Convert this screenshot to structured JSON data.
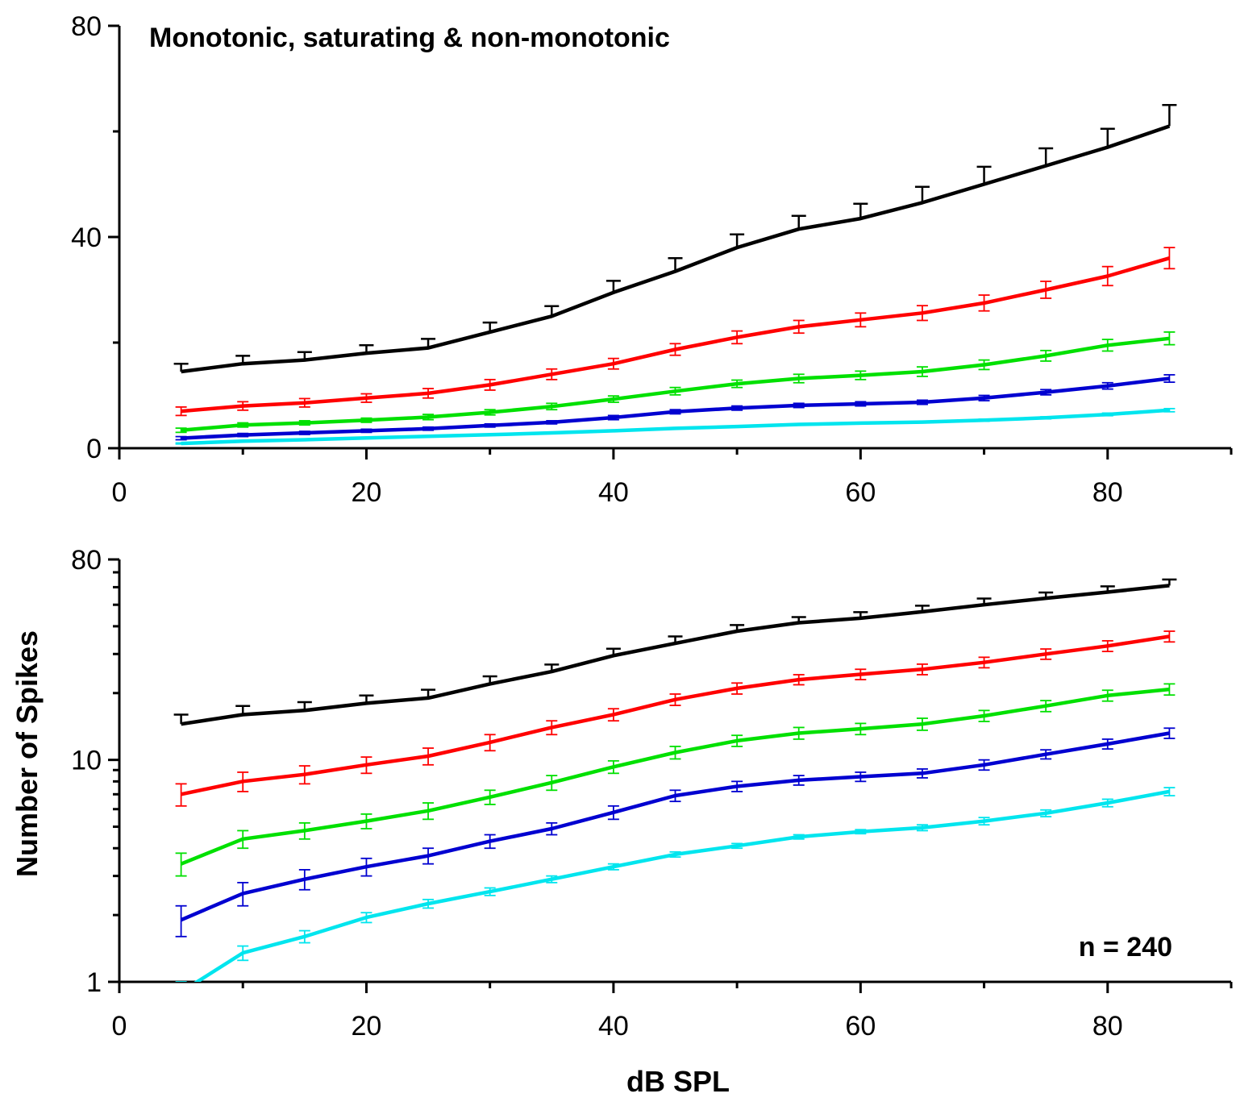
{
  "chart_data": [
    {
      "type": "line",
      "title": "Monotonic, saturating & non-monotonic",
      "xlabel": "",
      "ylabel": "",
      "xlim": [
        0,
        90
      ],
      "ylim": [
        0,
        80
      ],
      "yscale": "linear",
      "x_ticks": [
        0,
        20,
        40,
        60,
        80
      ],
      "x_ticks_labels": [
        "0",
        "20",
        "40",
        "60",
        "80"
      ],
      "y_ticks": [
        0,
        40,
        80
      ],
      "y_ticks_labels": [
        "0",
        "40",
        "80"
      ],
      "y_minor_ticks": [
        20,
        60
      ],
      "error_bars": "upper only (black); symmetric (colored)",
      "x": [
        5,
        10,
        15,
        20,
        25,
        30,
        35,
        40,
        45,
        50,
        55,
        60,
        65,
        70,
        75,
        80,
        85
      ],
      "series": [
        {
          "color": "#000000",
          "error_style": "upper",
          "values": [
            14.5,
            16,
            16.7,
            18,
            19,
            22,
            25,
            29.5,
            33.5,
            38,
            41.5,
            43.5,
            46.5,
            50,
            53.5,
            57,
            61
          ],
          "errors": [
            1.5,
            1.5,
            1.5,
            1.5,
            1.7,
            1.8,
            1.9,
            2.2,
            2.5,
            2.5,
            2.5,
            2.8,
            3,
            3.3,
            3.3,
            3.5,
            4
          ]
        },
        {
          "color": "#ff0000",
          "error_style": "both",
          "values": [
            7,
            8,
            8.6,
            9.5,
            10.4,
            12,
            14,
            16,
            18.7,
            21,
            23,
            24.3,
            25.6,
            27.5,
            30,
            32.6,
            36
          ],
          "errors": [
            0.8,
            0.8,
            0.8,
            0.8,
            0.9,
            1,
            1,
            1,
            1.1,
            1.2,
            1.2,
            1.3,
            1.4,
            1.5,
            1.6,
            1.8,
            2
          ]
        },
        {
          "color": "#00e000",
          "error_style": "both",
          "values": [
            3.4,
            4.4,
            4.8,
            5.3,
            5.9,
            6.8,
            7.9,
            9.3,
            10.8,
            12.2,
            13.2,
            13.8,
            14.5,
            15.8,
            17.5,
            19.5,
            20.8
          ],
          "errors": [
            0.4,
            0.4,
            0.4,
            0.4,
            0.5,
            0.5,
            0.6,
            0.6,
            0.7,
            0.7,
            0.8,
            0.8,
            0.9,
            0.9,
            1,
            1.1,
            1.2
          ]
        },
        {
          "color": "#0000d0",
          "error_style": "both",
          "values": [
            1.9,
            2.5,
            2.9,
            3.3,
            3.7,
            4.3,
            4.9,
            5.8,
            6.9,
            7.6,
            8.1,
            8.4,
            8.7,
            9.5,
            10.6,
            11.8,
            13.2
          ],
          "errors": [
            0.3,
            0.3,
            0.3,
            0.3,
            0.3,
            0.3,
            0.3,
            0.4,
            0.4,
            0.4,
            0.4,
            0.4,
            0.4,
            0.5,
            0.5,
            0.6,
            0.7
          ]
        },
        {
          "color": "#00e5ee",
          "error_style": "both",
          "values": [
            0.9,
            1.35,
            1.6,
            1.95,
            2.25,
            2.55,
            2.9,
            3.3,
            3.75,
            4.1,
            4.5,
            4.75,
            4.95,
            5.3,
            5.75,
            6.4,
            7.2
          ],
          "errors": [
            0.1,
            0.1,
            0.1,
            0.1,
            0.1,
            0.1,
            0.1,
            0.1,
            0.1,
            0.1,
            0.1,
            0.1,
            0.15,
            0.2,
            0.2,
            0.25,
            0.3
          ]
        }
      ]
    },
    {
      "type": "line",
      "title": "",
      "xlabel": "dB SPL",
      "ylabel": "Number of Spikes",
      "annotation": "n = 240",
      "xlim": [
        0,
        90
      ],
      "ylim": [
        1,
        80
      ],
      "yscale": "log",
      "x_ticks": [
        0,
        20,
        40,
        60,
        80
      ],
      "x_ticks_labels": [
        "0",
        "20",
        "40",
        "60",
        "80"
      ],
      "y_ticks": [
        1,
        10,
        80
      ],
      "y_ticks_labels": [
        "1",
        "10",
        "80"
      ],
      "error_bars": "upper only (black); symmetric (colored)",
      "x": [
        5,
        10,
        15,
        20,
        25,
        30,
        35,
        40,
        45,
        50,
        55,
        60,
        65,
        70,
        75,
        80,
        85
      ],
      "series": [
        {
          "color": "#000000",
          "error_style": "upper",
          "values": [
            14.5,
            16,
            16.7,
            18,
            19,
            22,
            25,
            29.5,
            33.5,
            38,
            41.5,
            43.5,
            46.5,
            50,
            53.5,
            57,
            61
          ],
          "errors": [
            1.5,
            1.5,
            1.5,
            1.5,
            1.7,
            1.8,
            1.9,
            2.2,
            2.5,
            2.5,
            2.5,
            2.8,
            3,
            3.3,
            3.3,
            3.5,
            4
          ]
        },
        {
          "color": "#ff0000",
          "error_style": "both",
          "values": [
            7,
            8,
            8.6,
            9.5,
            10.4,
            12,
            14,
            16,
            18.7,
            21,
            23,
            24.3,
            25.6,
            27.5,
            30,
            32.6,
            36
          ],
          "errors": [
            0.8,
            0.8,
            0.8,
            0.8,
            0.9,
            1,
            1,
            1,
            1.1,
            1.2,
            1.2,
            1.3,
            1.4,
            1.5,
            1.6,
            1.8,
            2
          ]
        },
        {
          "color": "#00e000",
          "error_style": "both",
          "values": [
            3.4,
            4.4,
            4.8,
            5.3,
            5.9,
            6.8,
            7.9,
            9.3,
            10.8,
            12.2,
            13.2,
            13.8,
            14.5,
            15.8,
            17.5,
            19.5,
            20.8
          ],
          "errors": [
            0.4,
            0.4,
            0.4,
            0.4,
            0.5,
            0.5,
            0.6,
            0.6,
            0.7,
            0.7,
            0.8,
            0.8,
            0.9,
            0.9,
            1,
            1.1,
            1.2
          ]
        },
        {
          "color": "#0000d0",
          "error_style": "both",
          "values": [
            1.9,
            2.5,
            2.9,
            3.3,
            3.7,
            4.3,
            4.9,
            5.8,
            6.9,
            7.6,
            8.1,
            8.4,
            8.7,
            9.5,
            10.6,
            11.8,
            13.2
          ],
          "errors": [
            0.3,
            0.3,
            0.3,
            0.3,
            0.3,
            0.3,
            0.3,
            0.4,
            0.4,
            0.4,
            0.4,
            0.4,
            0.4,
            0.5,
            0.5,
            0.6,
            0.7
          ]
        },
        {
          "color": "#00e5ee",
          "error_style": "both",
          "values": [
            0.9,
            1.35,
            1.6,
            1.95,
            2.25,
            2.55,
            2.9,
            3.3,
            3.75,
            4.1,
            4.5,
            4.75,
            4.95,
            5.3,
            5.75,
            6.4,
            7.2
          ],
          "errors": [
            0.1,
            0.1,
            0.1,
            0.1,
            0.1,
            0.1,
            0.1,
            0.1,
            0.1,
            0.1,
            0.1,
            0.1,
            0.15,
            0.2,
            0.2,
            0.25,
            0.3
          ]
        }
      ]
    }
  ]
}
